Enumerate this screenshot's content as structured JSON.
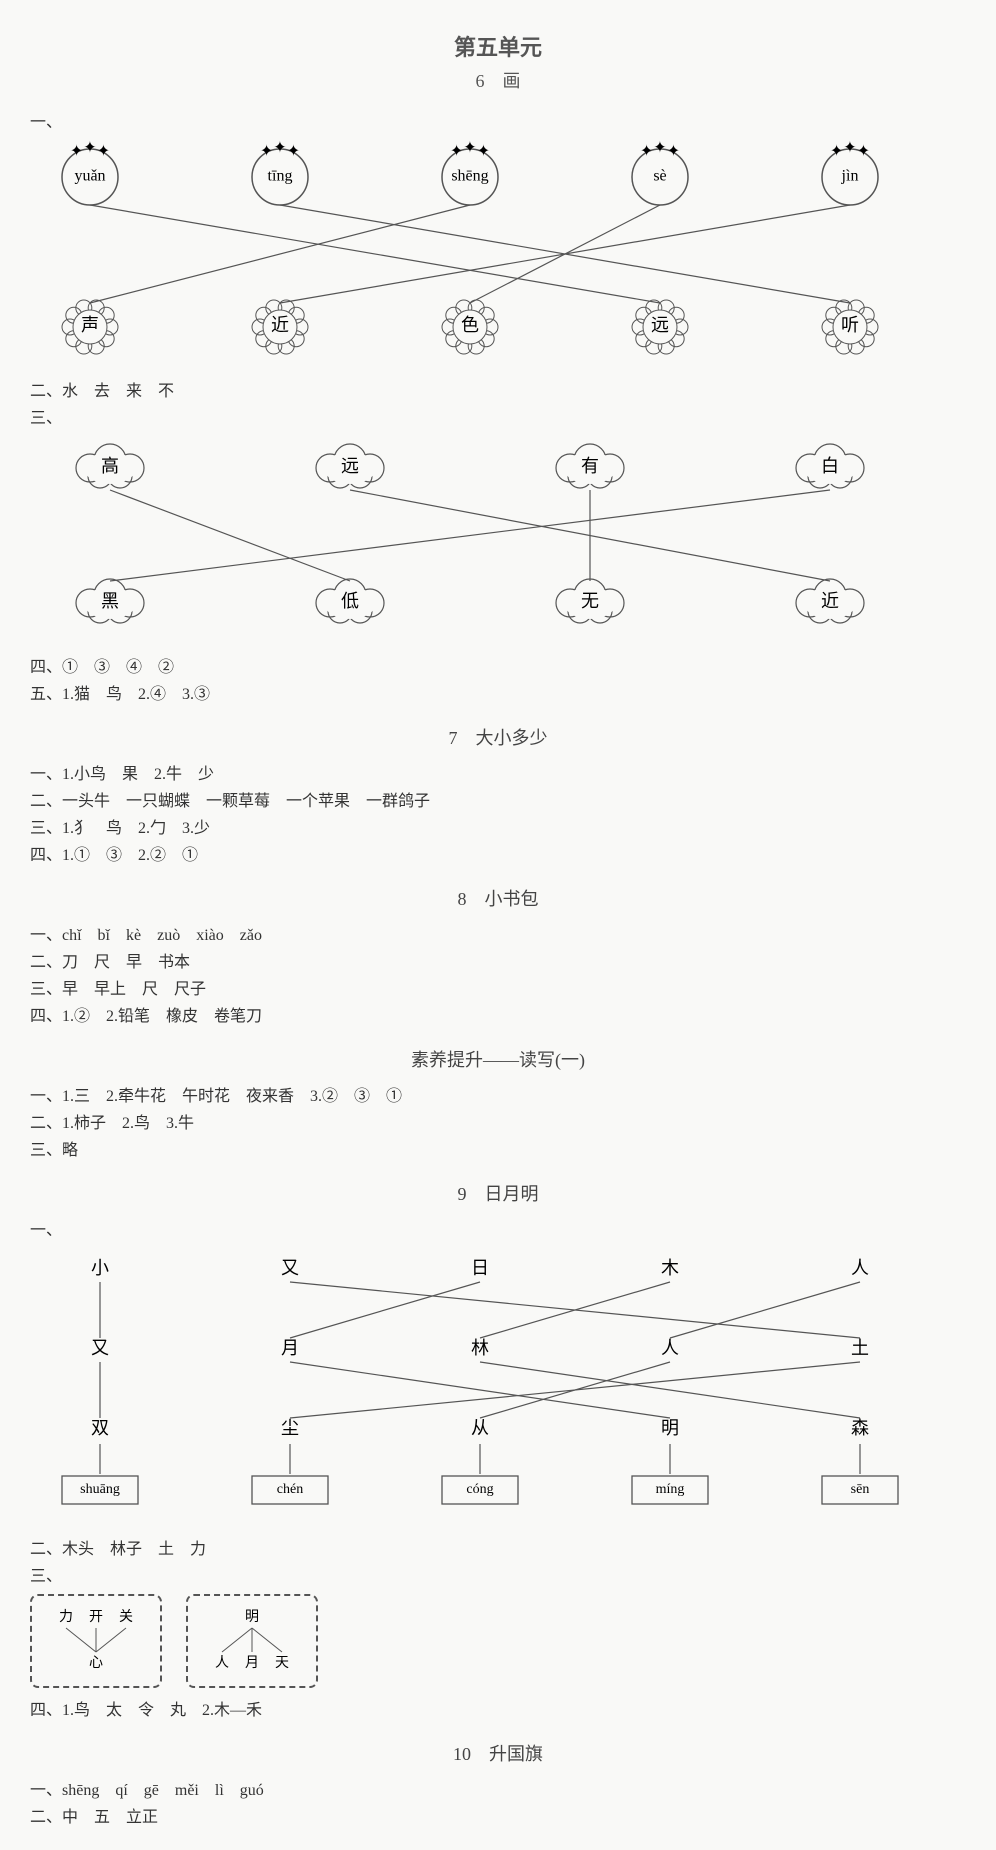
{
  "unit_title": "第五单元",
  "lesson6": {
    "title": "6　画",
    "q1_label": "一、",
    "pinyin": [
      "yuǎn",
      "tīng",
      "shēng",
      "sè",
      "jìn"
    ],
    "flowers": [
      "声",
      "近",
      "色",
      "远",
      "听"
    ],
    "edges_top": [
      [
        0,
        3
      ],
      [
        1,
        4
      ],
      [
        2,
        0
      ],
      [
        3,
        2
      ],
      [
        4,
        1
      ]
    ],
    "q2": "二、水　去　来　不",
    "q3_label": "三、",
    "clouds_top": [
      "高",
      "远",
      "有",
      "白"
    ],
    "clouds_bot": [
      "黑",
      "低",
      "无",
      "近"
    ],
    "edges_mid": [
      [
        0,
        1
      ],
      [
        1,
        3
      ],
      [
        2,
        2
      ],
      [
        3,
        0
      ]
    ],
    "q4": "四、①　③　④　②",
    "q5": "五、1.猫　鸟　2.④　3.③"
  },
  "lesson7": {
    "title": "7　大小多少",
    "l1": "一、1.小鸟　果　2.牛　少",
    "l2": "二、一头牛　一只蝴蝶　一颗草莓　一个苹果　一群鸽子",
    "l3": "三、1.犭　鸟　2.勹　3.少",
    "l4": "四、1.①　③　2.②　①"
  },
  "lesson8": {
    "title": "8　小书包",
    "l1": "一、chǐ　bǐ　kè　zuò　xiào　zǎo",
    "l2": "二、刀　尺　早　书本",
    "l3": "三、早　早上　尺　尺子",
    "l4": "四、1.②　2.铅笔　橡皮　卷笔刀"
  },
  "suyang": {
    "title": "素养提升——读写(一)",
    "l1": "一、1.三　2.牵牛花　午时花　夜来香　3.②　③　①",
    "l2": "二、1.柿子　2.鸟　3.牛",
    "l3": "三、略"
  },
  "lesson9": {
    "title": "9　日月明",
    "q1_label": "一、",
    "row1": [
      "小",
      "又",
      "日",
      "木",
      "人"
    ],
    "row2": [
      "又",
      "月",
      "林",
      "人",
      "土"
    ],
    "row3": [
      "双",
      "尘",
      "从",
      "明",
      "森"
    ],
    "row4": [
      "shuāng",
      "chén",
      "cóng",
      "míng",
      "sēn"
    ],
    "edges12": [
      [
        0,
        0
      ],
      [
        1,
        4
      ],
      [
        2,
        1
      ],
      [
        3,
        2
      ],
      [
        4,
        3
      ]
    ],
    "edges23": [
      [
        0,
        0
      ],
      [
        1,
        3
      ],
      [
        2,
        4
      ],
      [
        3,
        2
      ],
      [
        4,
        1
      ]
    ],
    "l2": "二、木头　林子　土　力",
    "l3": "三、",
    "box1_top": "力 开 关",
    "box1_bot": "心",
    "box2_top": "明",
    "box2_bot": "人 月 天",
    "l4": "四、1.鸟　太　令　丸　2.木—禾"
  },
  "lesson10": {
    "title": "10　升国旗",
    "l1": "一、shēng　qí　gē　měi　lì　guó",
    "l2": "二、中　五　立正"
  },
  "colors": {
    "stroke": "#555555",
    "text": "#333333",
    "bg": "#f9f9f7"
  }
}
